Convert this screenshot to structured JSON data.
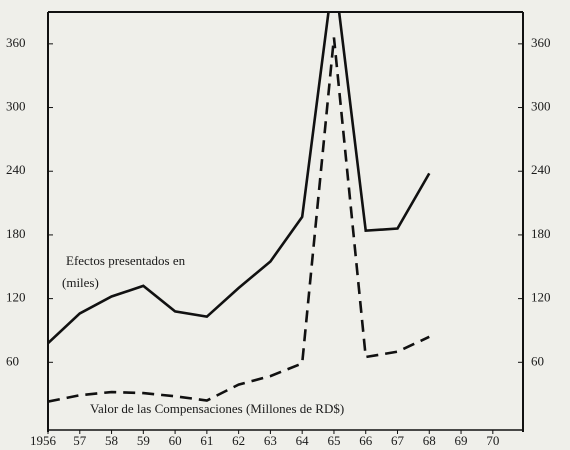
{
  "chart_data": {
    "type": "line",
    "x": [
      1956,
      1957,
      1958,
      1959,
      1960,
      1961,
      1962,
      1963,
      1964,
      1965,
      1966,
      1967,
      1968
    ],
    "series": [
      {
        "name": "Efectos presentados en (miles)",
        "color": "#111111",
        "dash": false,
        "values": [
          78,
          106,
          122,
          132,
          108,
          103,
          130,
          155,
          197,
          430,
          184,
          186,
          238
        ]
      },
      {
        "name": "Valor de las Compensaciones (Millones de RD$)",
        "color": "#111111",
        "dash": true,
        "values": [
          23,
          29,
          32,
          31,
          28,
          24,
          39,
          47,
          59,
          366,
          65,
          70,
          84
        ]
      }
    ],
    "annotations": [
      "Efectos presentados en",
      "(miles)",
      "Valor de las Compensaciones (Millones de RD$)"
    ],
    "xlim": [
      1956,
      1970.95
    ],
    "xticks": [
      1956,
      {
        "value": 1957,
        "label": "57"
      },
      {
        "value": 1958,
        "label": "58"
      },
      {
        "value": 1959,
        "label": "59"
      },
      {
        "value": 1960,
        "label": "60"
      },
      {
        "value": 1961,
        "label": "61"
      },
      {
        "value": 1962,
        "label": "62"
      },
      {
        "value": 1963,
        "label": "63"
      },
      {
        "value": 1964,
        "label": "64"
      },
      {
        "value": 1965,
        "label": "65"
      },
      {
        "value": 1966,
        "label": "66"
      },
      {
        "value": 1967,
        "label": "67"
      },
      {
        "value": 1968,
        "label": "68"
      },
      {
        "value": 1969,
        "label": "69"
      },
      {
        "value": 1970,
        "label": "70"
      }
    ],
    "ylim": [
      0,
      390
    ],
    "yticks": [
      60,
      120,
      180,
      240,
      300,
      360
    ],
    "y2lim": [
      0,
      390
    ],
    "y2ticks": [
      60,
      120,
      180,
      240,
      300,
      360
    ],
    "grid": false
  }
}
